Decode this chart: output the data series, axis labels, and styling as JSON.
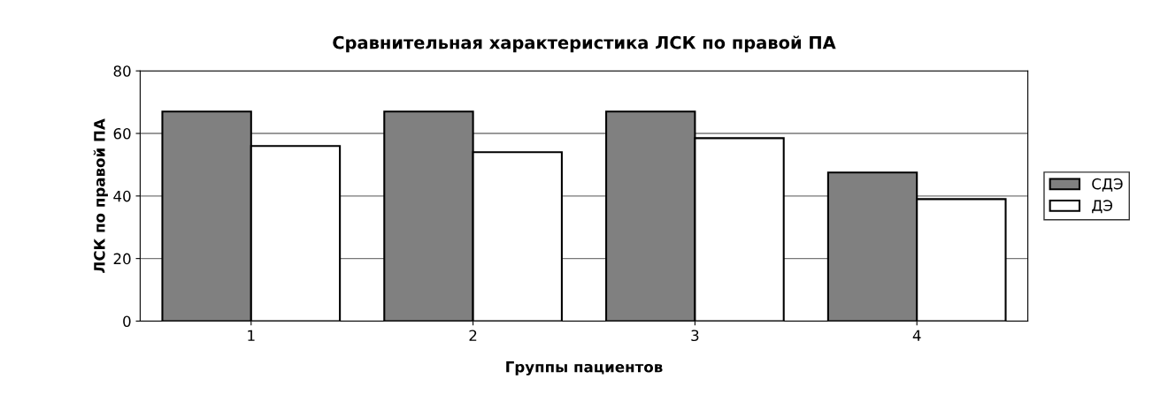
{
  "chart_data": {
    "type": "bar",
    "title": "Сравнительная характеристика ЛСК по правой ПА",
    "xlabel": "Группы пациентов",
    "ylabel": "ЛСК по правой ПА",
    "categories": [
      "1",
      "2",
      "3",
      "4"
    ],
    "series": [
      {
        "name": "СДЭ",
        "color": "#808080",
        "values": [
          67,
          67,
          67,
          47.5
        ]
      },
      {
        "name": "ДЭ",
        "color": "#ffffff",
        "values": [
          56,
          54,
          58.5,
          39
        ]
      }
    ],
    "ylim": [
      0,
      80
    ],
    "yticks": [
      0,
      20,
      40,
      60,
      80
    ],
    "grid": "y",
    "legend": "right"
  }
}
